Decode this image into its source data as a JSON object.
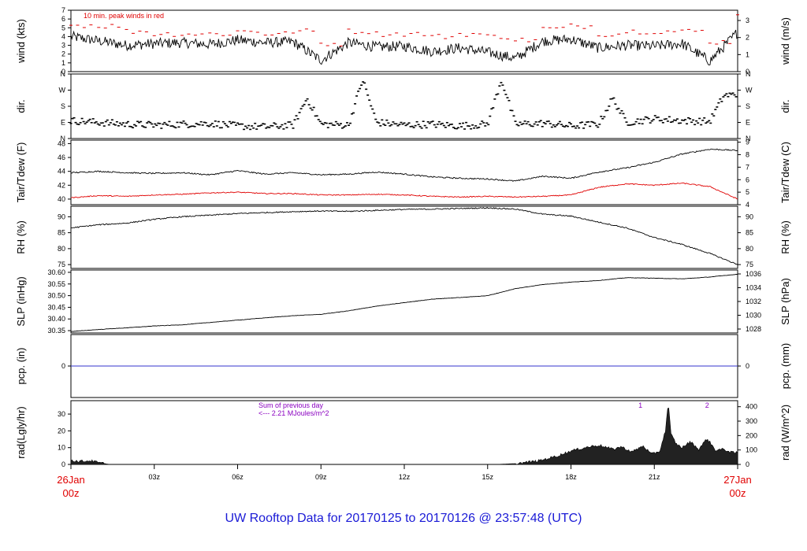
{
  "title": "UW Rooftop Data for 20170125  to  20170126 @ 23:57:48  (UTC)",
  "colors": {
    "line": "#000000",
    "peak": "#e00000",
    "tdew": "#e00000",
    "pcp": "#3333cc",
    "annot": "#8a00c0",
    "time_edge": "#e00000",
    "title": "#1a1ad6"
  },
  "time_axis": {
    "start_label": [
      "26Jan",
      "00z"
    ],
    "end_label": [
      "27Jan",
      "00z"
    ],
    "ticks": [
      {
        "hour": 0,
        "label": ""
      },
      {
        "hour": 3,
        "label": "03z"
      },
      {
        "hour": 6,
        "label": "06z"
      },
      {
        "hour": 9,
        "label": "09z"
      },
      {
        "hour": 12,
        "label": "12z"
      },
      {
        "hour": 15,
        "label": "15z"
      },
      {
        "hour": 18,
        "label": "18z"
      },
      {
        "hour": 21,
        "label": "21z"
      },
      {
        "hour": 24,
        "label": ""
      }
    ]
  },
  "chart_data": [
    {
      "type": "line",
      "panel": "wind",
      "ylabel_left": "wind (kts)",
      "ylabel_right": "wind (m/s)",
      "annotation": "10 min. peak winds in red",
      "ylim": [
        0,
        7
      ],
      "left_ticks": [
        "0",
        "1",
        "2",
        "3",
        "4",
        "5",
        "6",
        "7"
      ],
      "right_ticks": [
        "0",
        "1",
        "2",
        "3"
      ],
      "series": [
        {
          "key": "wind",
          "x_hours": [
            0,
            1,
            2,
            3,
            4,
            5,
            6,
            7,
            8,
            9,
            10,
            11,
            12,
            13,
            14,
            15,
            16,
            17,
            18,
            19,
            20,
            21,
            22,
            23,
            24
          ],
          "values": [
            4.0,
            3.5,
            3.0,
            3.2,
            3.3,
            3.1,
            3.6,
            3.3,
            3.4,
            1.3,
            3.3,
            2.8,
            2.9,
            2.3,
            2.7,
            2.2,
            1.5,
            3.5,
            3.7,
            2.7,
            3.0,
            2.9,
            3.2,
            1.2,
            4.5
          ]
        },
        {
          "key": "peak",
          "x_hours": [
            0,
            1,
            2,
            3,
            4,
            5,
            6,
            7,
            8,
            9,
            10,
            11,
            12,
            13,
            14,
            15,
            16,
            17,
            18,
            19,
            20,
            21,
            22,
            23,
            24
          ],
          "values": [
            5.3,
            5.2,
            4.6,
            4.3,
            4.3,
            4.3,
            4.6,
            4.3,
            4.6,
            3.2,
            4.6,
            4.3,
            4.3,
            4.0,
            4.3,
            4.0,
            3.6,
            4.9,
            5.2,
            4.3,
            4.6,
            4.6,
            4.6,
            3.4,
            6.6
          ]
        }
      ]
    },
    {
      "type": "scatter",
      "panel": "dir",
      "ylabel_left": "dir.",
      "ylabel_right": "dir.",
      "ylim": [
        0,
        360
      ],
      "left_ticks": [
        "N",
        "E",
        "S",
        "W",
        "N"
      ],
      "right_ticks": [
        "N",
        "E",
        "S",
        "W",
        "N"
      ],
      "series": [
        {
          "key": "dir",
          "x_hours": [
            0,
            1,
            2,
            3,
            4,
            5,
            6,
            7,
            8,
            8.5,
            9,
            10,
            10.5,
            11,
            12,
            13,
            14,
            15,
            15.5,
            16,
            17,
            18,
            19,
            19.5,
            20,
            21,
            22,
            23,
            23.5,
            24
          ],
          "values": [
            100,
            90,
            80,
            75,
            80,
            85,
            70,
            65,
            75,
            225,
            80,
            75,
            330,
            90,
            75,
            80,
            70,
            80,
            330,
            80,
            85,
            70,
            80,
            225,
            90,
            110,
            100,
            95,
            240,
            245
          ]
        }
      ]
    },
    {
      "type": "line",
      "panel": "temp",
      "ylabel_left": "Tair/Tdew (F)",
      "ylabel_right": "Tair/Tdew (C)",
      "ylim": [
        39.2,
        48.5
      ],
      "left_ticks": [
        "40",
        "42",
        "44",
        "46",
        "48"
      ],
      "right_ticks": [
        "4",
        "5",
        "6",
        "7",
        "8",
        "9"
      ],
      "series": [
        {
          "key": "tair",
          "x_hours": [
            0,
            1,
            2,
            3,
            4,
            5,
            6,
            7,
            8,
            9,
            10,
            11,
            12,
            13,
            14,
            15,
            16,
            17,
            18,
            19,
            20,
            21,
            22,
            23,
            24
          ],
          "values": [
            43.8,
            44.0,
            43.8,
            43.7,
            43.8,
            43.5,
            44.1,
            43.6,
            43.8,
            43.5,
            43.6,
            43.9,
            43.6,
            43.2,
            43.0,
            42.9,
            42.6,
            43.3,
            43.0,
            43.9,
            44.5,
            45.3,
            46.5,
            47.2,
            47.0
          ]
        },
        {
          "key": "tdew",
          "x_hours": [
            0,
            1,
            2,
            3,
            4,
            5,
            6,
            7,
            8,
            9,
            10,
            11,
            12,
            13,
            14,
            15,
            16,
            17,
            18,
            19,
            20,
            21,
            22,
            23,
            24
          ],
          "values": [
            40.2,
            40.5,
            40.4,
            40.6,
            40.7,
            40.9,
            41.0,
            40.8,
            40.8,
            40.6,
            40.6,
            40.7,
            40.6,
            40.4,
            40.3,
            40.4,
            40.3,
            40.4,
            40.6,
            41.7,
            42.2,
            42.0,
            42.3,
            41.8,
            40.0
          ]
        }
      ]
    },
    {
      "type": "line",
      "panel": "rh",
      "ylabel_left": "RH (%)",
      "ylabel_right": "RH (%)",
      "ylim": [
        73.8,
        93.3
      ],
      "left_ticks": [
        "75",
        "80",
        "85",
        "90"
      ],
      "right_ticks": [
        "75",
        "80",
        "85",
        "90"
      ],
      "series": [
        {
          "key": "rh",
          "x_hours": [
            0,
            1,
            2,
            3,
            4,
            5,
            6,
            7,
            8,
            9,
            10,
            11,
            12,
            13,
            14,
            15,
            16,
            17,
            18,
            19,
            20,
            21,
            22,
            23,
            24
          ],
          "values": [
            86.5,
            87.5,
            88.0,
            89.2,
            90.0,
            90.5,
            91.0,
            91.3,
            91.6,
            91.8,
            91.7,
            92.0,
            92.3,
            92.4,
            92.6,
            92.8,
            92.4,
            90.8,
            90.2,
            88.3,
            86.5,
            83.5,
            81.3,
            78.5,
            75.0
          ]
        }
      ]
    },
    {
      "type": "line",
      "panel": "slp",
      "ylabel_left": "SLP (inHg)",
      "ylabel_right": "SLP (hPa)",
      "ylim": [
        30.34,
        30.61
      ],
      "left_ticks": [
        "30.35",
        "30.40",
        "30.45",
        "30.50",
        "30.55",
        "30.60"
      ],
      "right_ticks": [
        "1028",
        "1030",
        "1032",
        "1034",
        "1036"
      ],
      "series": [
        {
          "key": "slp",
          "x_hours": [
            0,
            1,
            2,
            3,
            4,
            5,
            6,
            7,
            8,
            9,
            10,
            11,
            12,
            13,
            14,
            15,
            16,
            17,
            18,
            19,
            20,
            21,
            22,
            23,
            24
          ],
          "values": [
            30.346,
            30.355,
            30.362,
            30.37,
            30.375,
            30.385,
            30.395,
            30.405,
            30.414,
            30.42,
            30.435,
            30.455,
            30.47,
            30.485,
            30.492,
            30.5,
            30.53,
            30.548,
            30.558,
            30.565,
            30.577,
            30.575,
            30.572,
            30.58,
            30.592
          ]
        }
      ]
    },
    {
      "type": "line",
      "panel": "pcp",
      "ylabel_left": "pcp. (in)",
      "ylabel_right": "pcp. (mm)",
      "ylim": [
        -1,
        1
      ],
      "left_ticks": [
        "0"
      ],
      "right_ticks": [
        "0"
      ],
      "series": [
        {
          "key": "pcp",
          "x_hours": [
            0,
            24
          ],
          "values": [
            0,
            0
          ]
        }
      ]
    },
    {
      "type": "area",
      "panel": "rad",
      "ylabel_left": "rad(Lgly/hr)",
      "ylabel_right": "rad (W/m^2)",
      "ylim": [
        0,
        38
      ],
      "left_ticks": [
        "0",
        "10",
        "20",
        "30"
      ],
      "right_ticks": [
        "0",
        "100",
        "200",
        "300",
        "400"
      ],
      "annotation_lines": [
        "Sum of previous day",
        "<--- 2.21 MJoules/m^2"
      ],
      "markers": [
        {
          "x_hour": 20.5,
          "label": "1"
        },
        {
          "x_hour": 22.9,
          "label": "2"
        }
      ],
      "series": [
        {
          "key": "rad",
          "x_hours": [
            0,
            0.3,
            0.7,
            1.0,
            1.4,
            15.3,
            16.0,
            16.8,
            17.5,
            18.0,
            18.5,
            19.0,
            19.5,
            19.8,
            20.2,
            20.6,
            20.9,
            21.2,
            21.4,
            21.5,
            21.6,
            21.8,
            22.0,
            22.3,
            22.6,
            22.9,
            23.2,
            23.5,
            23.8,
            24.0
          ],
          "values": [
            2.5,
            1.8,
            2.2,
            1.0,
            0.0,
            0.0,
            0.5,
            2.0,
            5.0,
            8.0,
            10.0,
            11.5,
            9.0,
            10.5,
            7.5,
            11.0,
            6.0,
            8.0,
            20.0,
            37.0,
            18.0,
            12.0,
            10.0,
            13.5,
            9.0,
            15.5,
            8.5,
            9.0,
            7.0,
            7.0
          ]
        }
      ]
    }
  ]
}
